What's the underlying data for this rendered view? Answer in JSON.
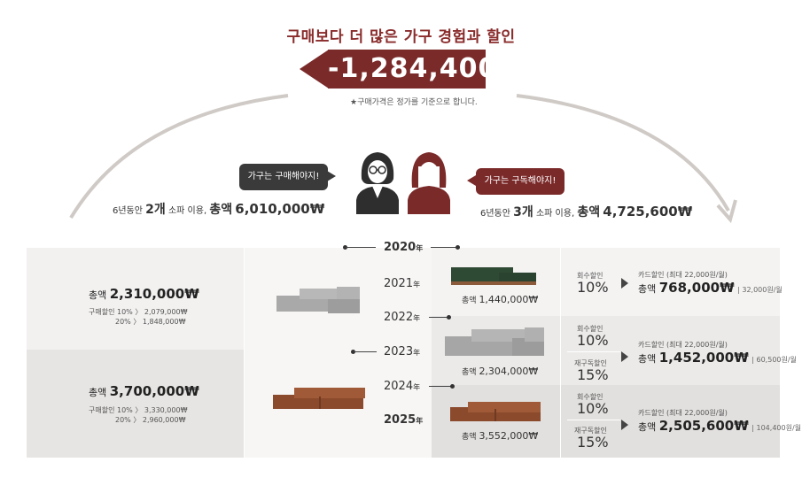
{
  "headline": "구매보다 더 많은 가구 경험과 할인",
  "savings": "-1,284,400",
  "note": "★구매가격은 정가를 기준으로 합니다.",
  "left_person": {
    "bubble": "가구는 구매해야지!",
    "total_prefix": "6년동안",
    "count": "2개",
    "total_mid": "소파 이용,",
    "total_label": "총액",
    "total_value": "6,010,000₩"
  },
  "right_person": {
    "bubble": "가구는 구독해야지!",
    "total_prefix": "6년동안",
    "count": "3개",
    "total_mid": "소파 이용,",
    "total_label": "총액",
    "total_value": "4,725,600₩"
  },
  "purchase_blocks": [
    {
      "total_label": "총액",
      "total_value": "2,310,000₩",
      "disc_label": "구매할인",
      "disc_lines": [
        "10%  〉 2,079,000₩",
        "20%  〉 1,848,000₩"
      ]
    },
    {
      "total_label": "총액",
      "total_value": "3,700,000₩",
      "disc_label": "구매할인",
      "disc_lines": [
        "10%  〉 3,330,000₩",
        "20%  〉 2,960,000₩"
      ]
    }
  ],
  "years": [
    {
      "year": "2020",
      "suffix": "年"
    },
    {
      "year": "2021",
      "suffix": "年"
    },
    {
      "year": "2022",
      "suffix": "年"
    },
    {
      "year": "2023",
      "suffix": "年"
    },
    {
      "year": "2024",
      "suffix": "年"
    },
    {
      "year": "2025",
      "suffix": "年"
    }
  ],
  "subscribe_sofas": [
    {
      "label": "총액",
      "value": "1,440,000₩"
    },
    {
      "label": "총액",
      "value": "2,304,000₩"
    },
    {
      "label": "총액",
      "value": "3,552,000₩"
    }
  ],
  "discount_rows": [
    {
      "label": "회수할인",
      "pct": "10%"
    },
    {
      "label": "회수할인",
      "pct": "10%"
    },
    {
      "label": "재구독할인",
      "pct": "15%"
    },
    {
      "label": "회수할인",
      "pct": "10%"
    },
    {
      "label": "재구독할인",
      "pct": "15%"
    }
  ],
  "card_totals": [
    {
      "note": "카드할인 (최대 22,000원/월)",
      "label": "총액",
      "value": "768,000₩",
      "monthly": "| 32,000원/월"
    },
    {
      "note": "카드할인 (최대 22,000원/월)",
      "label": "총액",
      "value": "1,452,000₩",
      "monthly": "| 60,500원/월"
    },
    {
      "note": "카드할인 (최대 22,000원/월)",
      "label": "총액",
      "value": "2,505,600₩",
      "monthly": "| 104,400원/월"
    }
  ]
}
